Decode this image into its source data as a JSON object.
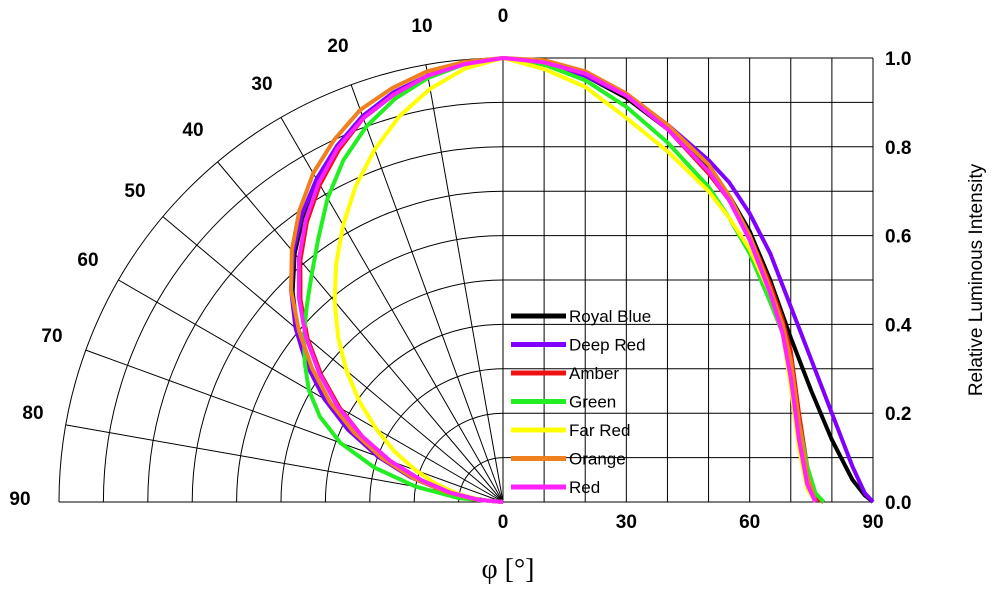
{
  "chart_data": {
    "type": "line",
    "subtype": "polar-half plus cartesian radiation pattern",
    "xlabel": "φ [°]",
    "ylabel": "Relative Luminous Intensity",
    "polar_angle_ticks": [
      "0",
      "10",
      "20",
      "30",
      "40",
      "50",
      "60",
      "70",
      "80",
      "90"
    ],
    "x_ticks": [
      "0",
      "30",
      "60",
      "90"
    ],
    "y_ticks": [
      "1.0",
      "0.8",
      "0.6",
      "0.4",
      "0.2",
      "0.0"
    ],
    "xlim": [
      0,
      90
    ],
    "ylim": [
      0,
      1
    ],
    "legend_position": "center",
    "series": [
      {
        "name": "Royal Blue",
        "color": "#000000",
        "polar": [
          [
            0,
            1.0
          ],
          [
            5,
            0.99
          ],
          [
            10,
            0.975
          ],
          [
            15,
            0.95
          ],
          [
            20,
            0.92
          ],
          [
            25,
            0.88
          ],
          [
            30,
            0.835
          ],
          [
            35,
            0.785
          ],
          [
            40,
            0.73
          ],
          [
            45,
            0.67
          ],
          [
            50,
            0.605
          ],
          [
            55,
            0.535
          ],
          [
            60,
            0.46
          ],
          [
            65,
            0.38
          ],
          [
            70,
            0.3
          ],
          [
            75,
            0.21
          ],
          [
            80,
            0.13
          ],
          [
            85,
            0.06
          ],
          [
            90,
            0.0
          ]
        ],
        "cartesian": [
          [
            0,
            1.0
          ],
          [
            10,
            0.99
          ],
          [
            20,
            0.96
          ],
          [
            30,
            0.91
          ],
          [
            40,
            0.84
          ],
          [
            45,
            0.8
          ],
          [
            50,
            0.75
          ],
          [
            55,
            0.69
          ],
          [
            60,
            0.61
          ],
          [
            65,
            0.5
          ],
          [
            70,
            0.37
          ],
          [
            75,
            0.25
          ],
          [
            80,
            0.14
          ],
          [
            85,
            0.05
          ],
          [
            88,
            0.015
          ],
          [
            90,
            0.0
          ]
        ]
      },
      {
        "name": "Deep Red",
        "color": "#7f00ff",
        "polar": [
          [
            0,
            1.0
          ],
          [
            5,
            0.99
          ],
          [
            10,
            0.975
          ],
          [
            15,
            0.955
          ],
          [
            20,
            0.925
          ],
          [
            25,
            0.885
          ],
          [
            30,
            0.84
          ],
          [
            35,
            0.79
          ],
          [
            40,
            0.735
          ],
          [
            45,
            0.675
          ],
          [
            50,
            0.61
          ],
          [
            55,
            0.54
          ],
          [
            60,
            0.465
          ],
          [
            65,
            0.385
          ],
          [
            70,
            0.3
          ],
          [
            75,
            0.215
          ],
          [
            80,
            0.13
          ],
          [
            85,
            0.06
          ],
          [
            90,
            0.0
          ]
        ],
        "cartesian": [
          [
            0,
            1.0
          ],
          [
            10,
            0.99
          ],
          [
            20,
            0.96
          ],
          [
            30,
            0.915
          ],
          [
            40,
            0.85
          ],
          [
            45,
            0.81
          ],
          [
            50,
            0.77
          ],
          [
            55,
            0.72
          ],
          [
            60,
            0.65
          ],
          [
            65,
            0.56
          ],
          [
            70,
            0.44
          ],
          [
            75,
            0.32
          ],
          [
            80,
            0.2
          ],
          [
            85,
            0.08
          ],
          [
            88,
            0.02
          ],
          [
            90,
            0.0
          ]
        ]
      },
      {
        "name": "Amber",
        "color": "#ee1111",
        "polar": [
          [
            0,
            1.0
          ],
          [
            5,
            0.99
          ],
          [
            10,
            0.975
          ],
          [
            15,
            0.95
          ],
          [
            20,
            0.92
          ],
          [
            25,
            0.875
          ],
          [
            30,
            0.825
          ],
          [
            35,
            0.77
          ],
          [
            40,
            0.71
          ],
          [
            45,
            0.645
          ],
          [
            50,
            0.575
          ],
          [
            55,
            0.5
          ],
          [
            60,
            0.425
          ],
          [
            65,
            0.35
          ],
          [
            70,
            0.275
          ],
          [
            75,
            0.2
          ],
          [
            80,
            0.125
          ],
          [
            85,
            0.06
          ],
          [
            90,
            0.0
          ]
        ],
        "cartesian": [
          [
            0,
            1.0
          ],
          [
            10,
            0.99
          ],
          [
            20,
            0.965
          ],
          [
            30,
            0.915
          ],
          [
            40,
            0.84
          ],
          [
            50,
            0.74
          ],
          [
            55,
            0.68
          ],
          [
            60,
            0.6
          ],
          [
            65,
            0.49
          ],
          [
            68,
            0.41
          ],
          [
            70,
            0.34
          ],
          [
            72,
            0.2
          ],
          [
            74,
            0.08
          ],
          [
            76,
            0.01
          ],
          [
            78,
            0.0
          ]
        ]
      },
      {
        "name": "Green",
        "color": "#22ee22",
        "polar": [
          [
            0,
            1.0
          ],
          [
            5,
            0.99
          ],
          [
            10,
            0.97
          ],
          [
            15,
            0.94
          ],
          [
            20,
            0.9
          ],
          [
            25,
            0.85
          ],
          [
            30,
            0.79
          ],
          [
            35,
            0.725
          ],
          [
            40,
            0.67
          ],
          [
            45,
            0.625
          ],
          [
            50,
            0.585
          ],
          [
            55,
            0.545
          ],
          [
            60,
            0.505
          ],
          [
            65,
            0.455
          ],
          [
            70,
            0.39
          ],
          [
            75,
            0.3
          ],
          [
            80,
            0.2
          ],
          [
            85,
            0.1
          ],
          [
            90,
            0.0
          ]
        ],
        "cartesian": [
          [
            0,
            1.0
          ],
          [
            10,
            0.985
          ],
          [
            20,
            0.95
          ],
          [
            30,
            0.89
          ],
          [
            40,
            0.81
          ],
          [
            50,
            0.71
          ],
          [
            55,
            0.64
          ],
          [
            60,
            0.56
          ],
          [
            65,
            0.45
          ],
          [
            68,
            0.38
          ],
          [
            70,
            0.3
          ],
          [
            72,
            0.18
          ],
          [
            74,
            0.08
          ],
          [
            76,
            0.02
          ],
          [
            78,
            0.0
          ]
        ]
      },
      {
        "name": "Far Red",
        "color": "#ffff00",
        "polar": [
          [
            0,
            1.0
          ],
          [
            5,
            0.98
          ],
          [
            10,
            0.945
          ],
          [
            15,
            0.9
          ],
          [
            20,
            0.845
          ],
          [
            25,
            0.785
          ],
          [
            30,
            0.72
          ],
          [
            35,
            0.655
          ],
          [
            40,
            0.59
          ],
          [
            45,
            0.525
          ],
          [
            50,
            0.46
          ],
          [
            55,
            0.395
          ],
          [
            60,
            0.33
          ],
          [
            65,
            0.27
          ],
          [
            70,
            0.21
          ],
          [
            75,
            0.155
          ],
          [
            80,
            0.1
          ],
          [
            85,
            0.05
          ],
          [
            90,
            0.0
          ]
        ],
        "cartesian": [
          [
            0,
            1.0
          ],
          [
            10,
            0.975
          ],
          [
            20,
            0.935
          ],
          [
            30,
            0.865
          ],
          [
            40,
            0.79
          ],
          [
            50,
            0.7
          ],
          [
            55,
            0.64
          ],
          [
            60,
            0.57
          ],
          [
            65,
            0.47
          ],
          [
            68,
            0.38
          ],
          [
            70,
            0.26
          ],
          [
            72,
            0.12
          ],
          [
            74,
            0.03
          ],
          [
            76,
            0.0
          ]
        ]
      },
      {
        "name": "Orange",
        "color": "#f07f1e",
        "polar": [
          [
            0,
            1.0
          ],
          [
            5,
            0.995
          ],
          [
            10,
            0.985
          ],
          [
            15,
            0.965
          ],
          [
            20,
            0.94
          ],
          [
            25,
            0.9
          ],
          [
            30,
            0.855
          ],
          [
            35,
            0.8
          ],
          [
            40,
            0.74
          ],
          [
            45,
            0.675
          ],
          [
            50,
            0.6
          ],
          [
            55,
            0.525
          ],
          [
            60,
            0.45
          ],
          [
            65,
            0.37
          ],
          [
            70,
            0.29
          ],
          [
            75,
            0.21
          ],
          [
            80,
            0.13
          ],
          [
            85,
            0.06
          ],
          [
            90,
            0.0
          ]
        ],
        "cartesian": [
          [
            0,
            1.0
          ],
          [
            10,
            0.995
          ],
          [
            20,
            0.97
          ],
          [
            30,
            0.92
          ],
          [
            40,
            0.85
          ],
          [
            50,
            0.76
          ],
          [
            55,
            0.69
          ],
          [
            60,
            0.6
          ],
          [
            65,
            0.48
          ],
          [
            68,
            0.4
          ],
          [
            70,
            0.32
          ],
          [
            72,
            0.18
          ],
          [
            74,
            0.06
          ],
          [
            76,
            0.0
          ]
        ]
      },
      {
        "name": "Red",
        "color": "#ff22ff",
        "polar": [
          [
            0,
            1.0
          ],
          [
            5,
            0.99
          ],
          [
            10,
            0.975
          ],
          [
            15,
            0.95
          ],
          [
            20,
            0.92
          ],
          [
            25,
            0.88
          ],
          [
            30,
            0.83
          ],
          [
            35,
            0.775
          ],
          [
            40,
            0.715
          ],
          [
            45,
            0.65
          ],
          [
            50,
            0.58
          ],
          [
            55,
            0.505
          ],
          [
            60,
            0.43
          ],
          [
            65,
            0.35
          ],
          [
            70,
            0.27
          ],
          [
            75,
            0.19
          ],
          [
            80,
            0.12
          ],
          [
            85,
            0.055
          ],
          [
            90,
            0.0
          ]
        ],
        "cartesian": [
          [
            0,
            1.0
          ],
          [
            10,
            0.99
          ],
          [
            20,
            0.965
          ],
          [
            30,
            0.915
          ],
          [
            40,
            0.84
          ],
          [
            50,
            0.745
          ],
          [
            55,
            0.68
          ],
          [
            60,
            0.59
          ],
          [
            65,
            0.47
          ],
          [
            68,
            0.38
          ],
          [
            70,
            0.28
          ],
          [
            72,
            0.14
          ],
          [
            74,
            0.04
          ],
          [
            76,
            0.0
          ]
        ]
      }
    ]
  }
}
